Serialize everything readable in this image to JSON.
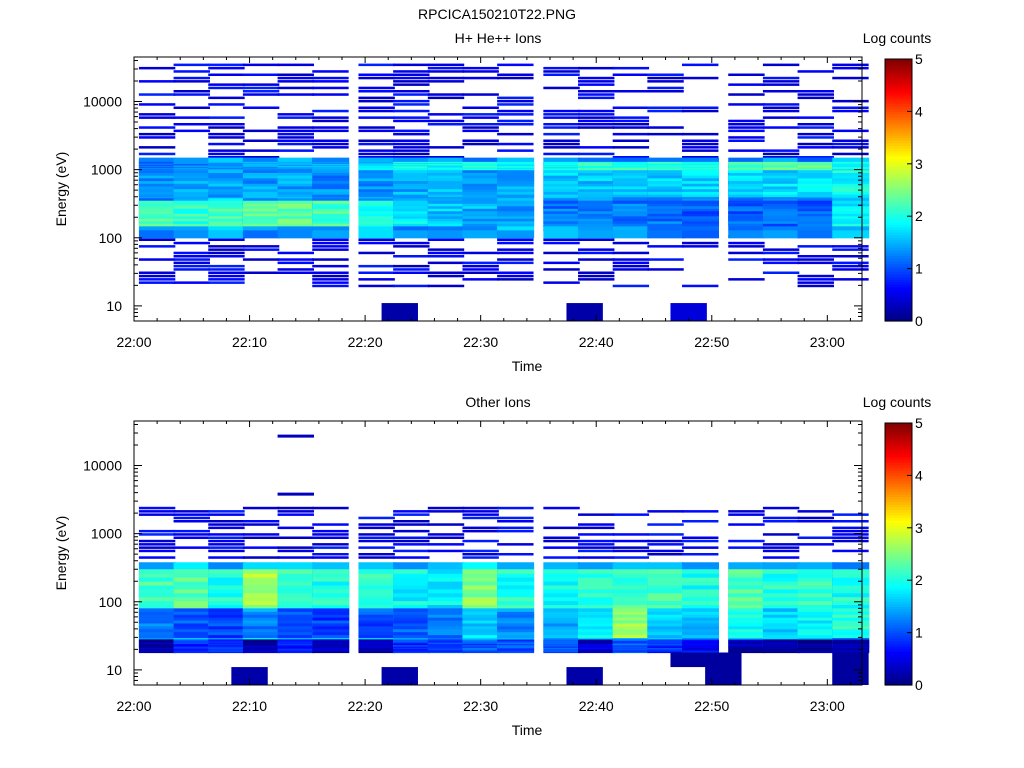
{
  "figure": {
    "title": "RPCICA150210T22.PNG"
  },
  "chart_data": [
    {
      "type": "heatmap",
      "title": "H+ He++ Ions",
      "xlabel": "Time",
      "ylabel": "Energy (eV)",
      "y_scale": "log",
      "ylim": [
        6,
        45000
      ],
      "xlim": [
        "22:00",
        "23:03"
      ],
      "x_ticks": [
        "22:00",
        "22:10",
        "22:20",
        "22:30",
        "22:40",
        "22:50",
        "23:00"
      ],
      "y_ticks": [
        "10",
        "100",
        "1000",
        "10000"
      ],
      "colorbar": {
        "label": "Log counts",
        "range": [
          0,
          5
        ],
        "ticks": [
          "0",
          "1",
          "2",
          "3",
          "4",
          "5"
        ]
      },
      "columns": [
        "22:02",
        "22:05",
        "22:08",
        "22:11",
        "22:14",
        "22:17",
        "22:21",
        "22:24",
        "22:27",
        "22:30",
        "22:33",
        "22:37",
        "22:40",
        "22:43",
        "22:46",
        "22:49",
        "22:53",
        "22:56",
        "22:59",
        "23:02"
      ],
      "bands": [
        {
          "emin": 100,
          "emax": 1500,
          "values": [
            1.3,
            1.5,
            1.6,
            1.4,
            1.5,
            1.4,
            1.5,
            1.4,
            1.3,
            1.3,
            1.5,
            1.4,
            1.3,
            1.3,
            1.3,
            1.2,
            1.3,
            1.3,
            1.2,
            1.6
          ]
        },
        {
          "emin": 150,
          "emax": 350,
          "values": [
            2.2,
            2.1,
            2.2,
            2.3,
            2.3,
            2.2,
            2.0,
            1.8,
            1.6,
            1.5,
            1.4,
            1.2,
            1.2,
            1.2,
            1.2,
            1.1,
            1.1,
            1.1,
            1.1,
            1.8
          ]
        },
        {
          "emin": 400,
          "emax": 1000,
          "values": [
            1.3,
            1.4,
            1.4,
            1.4,
            1.4,
            1.3,
            1.4,
            1.5,
            1.5,
            1.4,
            1.5,
            1.6,
            1.6,
            1.6,
            1.6,
            1.7,
            1.7,
            1.7,
            1.7,
            1.9
          ]
        },
        {
          "emin": 1000,
          "emax": 1300,
          "values": [
            1.2,
            1.3,
            1.3,
            1.4,
            1.4,
            1.5,
            1.7,
            1.9,
            1.9,
            2.0,
            1.8,
            1.9,
            2.1,
            2.1,
            2.1,
            2.0,
            2.2,
            2.4,
            2.4,
            1.8
          ]
        }
      ],
      "sporadic": {
        "emin": 18,
        "emax": 40000,
        "value": 0.3
      },
      "low_blocks": [
        {
          "t": "22:23",
          "emin": 6,
          "emax": 11,
          "value": 0.2
        },
        {
          "t": "22:39",
          "emin": 6,
          "emax": 11,
          "value": 0.2
        },
        {
          "t": "22:48",
          "emin": 6,
          "emax": 11,
          "value": 0.45
        }
      ]
    },
    {
      "type": "heatmap",
      "title": "Other Ions",
      "xlabel": "Time",
      "ylabel": "Energy (eV)",
      "y_scale": "log",
      "ylim": [
        6,
        45000
      ],
      "xlim": [
        "22:00",
        "23:03"
      ],
      "x_ticks": [
        "22:00",
        "22:10",
        "22:20",
        "22:30",
        "22:40",
        "22:50",
        "23:00"
      ],
      "y_ticks": [
        "10",
        "100",
        "1000",
        "10000"
      ],
      "colorbar": {
        "label": "Log counts",
        "range": [
          0,
          5
        ],
        "ticks": [
          "0",
          "1",
          "2",
          "3",
          "4",
          "5"
        ]
      },
      "columns": [
        "22:02",
        "22:05",
        "22:08",
        "22:11",
        "22:14",
        "22:17",
        "22:21",
        "22:24",
        "22:27",
        "22:30",
        "22:33",
        "22:37",
        "22:40",
        "22:43",
        "22:46",
        "22:49",
        "22:53",
        "22:56",
        "22:59",
        "23:02"
      ],
      "bands": [
        {
          "emin": 22,
          "emax": 380,
          "values": [
            1.5,
            1.6,
            1.5,
            1.8,
            1.6,
            1.5,
            1.6,
            1.5,
            1.4,
            1.7,
            1.5,
            1.4,
            1.6,
            1.6,
            1.6,
            1.4,
            1.7,
            1.6,
            1.6,
            1.3
          ]
        },
        {
          "emin": 80,
          "emax": 300,
          "values": [
            2.2,
            2.3,
            2.0,
            2.7,
            2.1,
            2.0,
            2.1,
            1.9,
            1.8,
            2.5,
            2.0,
            1.9,
            2.1,
            2.2,
            2.2,
            2.0,
            2.3,
            2.0,
            2.1,
            2.0
          ]
        },
        {
          "emin": 30,
          "emax": 80,
          "values": [
            1.2,
            1.1,
            1.0,
            1.3,
            1.0,
            0.9,
            1.0,
            1.1,
            1.2,
            1.7,
            1.3,
            1.4,
            1.8,
            2.6,
            1.7,
            1.6,
            1.9,
            1.7,
            1.8,
            2.1
          ]
        },
        {
          "emin": 18,
          "emax": 28,
          "values": [
            0.2,
            0.8,
            0.9,
            0.2,
            0.8,
            0.3,
            0.3,
            0.9,
            0.9,
            1.0,
            1.0,
            1.0,
            0.4,
            1.0,
            0.8,
            0.6,
            0.2,
            0.2,
            0.2,
            0.3
          ]
        }
      ],
      "sporadic": {
        "emin": 400,
        "emax": 2500,
        "value": 0.3
      },
      "high_marks": [
        {
          "t": "22:14",
          "energy": 27000
        },
        {
          "t": "22:14",
          "energy": 3800
        }
      ],
      "low_blocks": [
        {
          "t": "22:10",
          "emin": 6,
          "emax": 11,
          "value": 0.2
        },
        {
          "t": "22:23",
          "emin": 6,
          "emax": 11,
          "value": 0.2
        },
        {
          "t": "22:39",
          "emin": 6,
          "emax": 11,
          "value": 0.2
        },
        {
          "t": "22:48",
          "emin": 11,
          "emax": 18,
          "value": 0.15
        },
        {
          "t": "22:51",
          "emin": 6,
          "emax": 18,
          "value": 0.15
        },
        {
          "t": "23:02",
          "emin": 6,
          "emax": 18,
          "value": 0.15
        }
      ]
    }
  ]
}
